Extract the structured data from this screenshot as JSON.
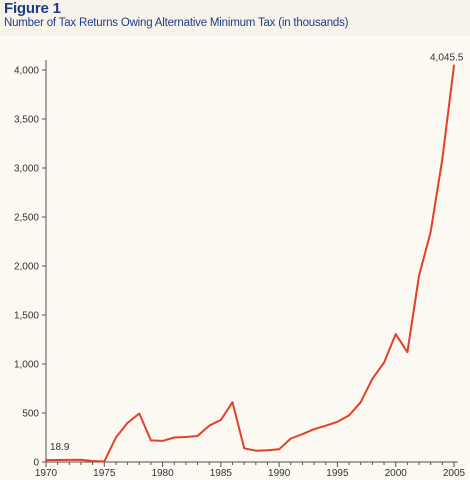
{
  "figure": {
    "title": "Figure 1",
    "subtitle": "Number of Tax Returns Owing Alternative Minimum Tax (in thousands)"
  },
  "chart_data": {
    "type": "line",
    "title": "Figure 1",
    "subtitle": "Number of Tax Returns Owing Alternative Minimum Tax (in thousands)",
    "xlabel": "",
    "ylabel": "",
    "xlim": [
      1970,
      2005
    ],
    "ylim": [
      0,
      4000
    ],
    "x_ticks": [
      1970,
      1975,
      1980,
      1985,
      1990,
      1995,
      2000,
      2005
    ],
    "y_ticks": [
      0,
      500,
      1000,
      1500,
      2000,
      2500,
      3000,
      3500,
      4000
    ],
    "y_tick_labels": [
      "0",
      "500",
      "1,000",
      "1,500",
      "2,000",
      "2,500",
      "3,000",
      "3,500",
      "4,000"
    ],
    "grid": false,
    "line_color": "#e2402a",
    "series": [
      {
        "x": [
          1970,
          1971,
          1972,
          1973,
          1974,
          1975,
          1976,
          1977,
          1978,
          1979,
          1980,
          1981,
          1982,
          1983,
          1984,
          1985,
          1986,
          1987,
          1988,
          1989,
          1990,
          1991,
          1992,
          1993,
          1994,
          1995,
          1996,
          1997,
          1998,
          1999,
          2000,
          2001,
          2002,
          2003,
          2004,
          2005
        ],
        "y": [
          18.9,
          20,
          21,
          22,
          10,
          5,
          250,
          400,
          495,
          220,
          215,
          250,
          255,
          265,
          370,
          430,
          610,
          140,
          115,
          120,
          130,
          240,
          285,
          335,
          370,
          410,
          475,
          610,
          850,
          1015,
          1305,
          1120,
          1900,
          2350,
          3090,
          4045.5
        ]
      }
    ],
    "annotations": [
      {
        "text": "18.9",
        "x": 1970,
        "y": 18.9
      },
      {
        "text": "4,045.5",
        "x": 2005,
        "y": 4045.5
      }
    ]
  }
}
